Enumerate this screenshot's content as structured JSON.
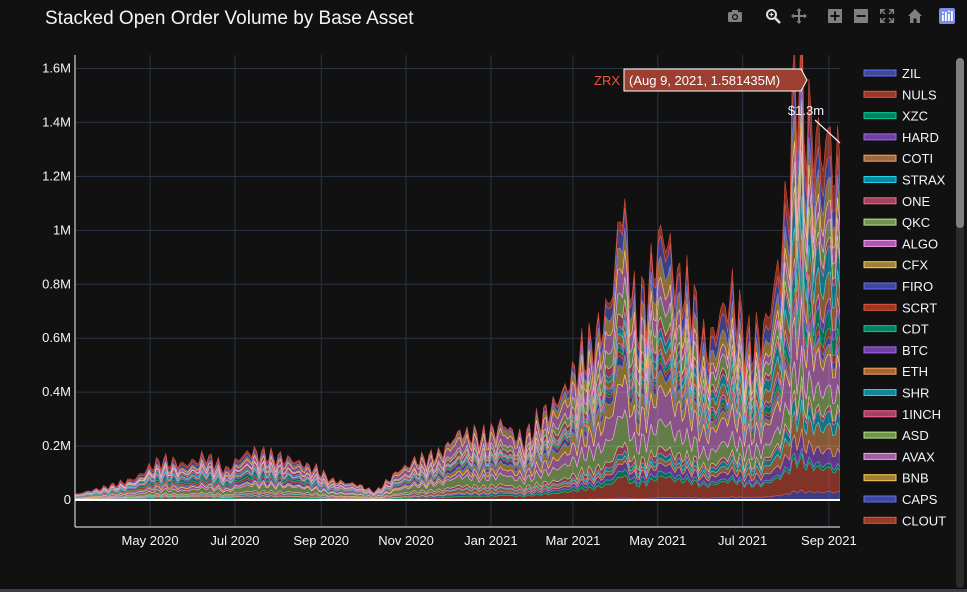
{
  "title": "Stacked Open Order Volume by Base Asset",
  "modebar": [
    {
      "name": "camera-icon",
      "label": "Download plot as a png"
    },
    {
      "name": "zoom-icon",
      "label": "Zoom"
    },
    {
      "name": "pan-icon",
      "label": "Pan"
    },
    {
      "name": "zoom-in-icon",
      "label": "Zoom in"
    },
    {
      "name": "zoom-out-icon",
      "label": "Zoom out"
    },
    {
      "name": "autoscale-icon",
      "label": "Autoscale"
    },
    {
      "name": "home-icon",
      "label": "Reset axes"
    },
    {
      "name": "plotly-logo-icon",
      "label": "Produced with Plotly"
    }
  ],
  "colors": {
    "background": "#111111",
    "gridline": "#283442",
    "text": "#f2f5fa"
  },
  "chart_data": {
    "type": "area",
    "title": "Stacked Open Order Volume by Base Asset",
    "xlabel": "",
    "ylabel": "",
    "x_tick_labels": [
      "May 2020",
      "Jul 2020",
      "Sep 2020",
      "Nov 2020",
      "Jan 2021",
      "Mar 2021",
      "May 2021",
      "Jul 2021",
      "Sep 2021"
    ],
    "y_tick_labels": [
      "0",
      "0.2M",
      "0.4M",
      "0.6M",
      "0.8M",
      "1M",
      "1.2M",
      "1.4M",
      "1.6M"
    ],
    "xlim": [
      "2020-03-08",
      "2021-09-09"
    ],
    "ylim": [
      -100000,
      1650000
    ],
    "grid": true,
    "legend_position": "right",
    "series": [
      {
        "name": "ZIL",
        "color": "#636efa"
      },
      {
        "name": "NULS",
        "color": "#EF553B"
      },
      {
        "name": "XZC",
        "color": "#00cc96"
      },
      {
        "name": "HARD",
        "color": "#ab63fa"
      },
      {
        "name": "COTI",
        "color": "#FFA15A"
      },
      {
        "name": "STRAX",
        "color": "#19d3f3"
      },
      {
        "name": "ONE",
        "color": "#FF6692"
      },
      {
        "name": "QKC",
        "color": "#B6E880"
      },
      {
        "name": "ALGO",
        "color": "#FF97FF"
      },
      {
        "name": "CFX",
        "color": "#FECB52"
      },
      {
        "name": "FIRO",
        "color": "#636efa"
      },
      {
        "name": "SCRT",
        "color": "#EF553B"
      },
      {
        "name": "CDT",
        "color": "#00cc96"
      },
      {
        "name": "BTC",
        "color": "#ab63fa"
      },
      {
        "name": "ETH",
        "color": "#FFA15A"
      },
      {
        "name": "SHR",
        "color": "#19d3f3"
      },
      {
        "name": "1INCH",
        "color": "#FF6692"
      },
      {
        "name": "ASD",
        "color": "#B6E880"
      },
      {
        "name": "AVAX",
        "color": "#FF97FF"
      },
      {
        "name": "BNB",
        "color": "#FECB52"
      },
      {
        "name": "CAPS",
        "color": "#636efa"
      },
      {
        "name": "CLOUT",
        "color": "#EF553B"
      }
    ],
    "total_envelope": {
      "x": [
        "2020-03-08",
        "2020-04-01",
        "2020-04-20",
        "2020-05-10",
        "2020-05-25",
        "2020-06-10",
        "2020-06-25",
        "2020-07-10",
        "2020-07-25",
        "2020-08-10",
        "2020-08-25",
        "2020-09-10",
        "2020-09-25",
        "2020-10-10",
        "2020-10-25",
        "2020-11-10",
        "2020-11-25",
        "2020-12-10",
        "2020-12-25",
        "2021-01-10",
        "2021-01-25",
        "2021-02-10",
        "2021-02-20",
        "2021-03-01",
        "2021-03-10",
        "2021-03-20",
        "2021-03-31",
        "2021-04-05",
        "2021-04-15",
        "2021-04-25",
        "2021-05-05",
        "2021-05-15",
        "2021-05-25",
        "2021-06-05",
        "2021-06-15",
        "2021-06-25",
        "2021-07-05",
        "2021-07-15",
        "2021-07-25",
        "2021-08-01",
        "2021-08-09",
        "2021-08-20",
        "2021-08-30",
        "2021-09-09"
      ],
      "y": [
        20000,
        50000,
        80000,
        150000,
        130000,
        160000,
        110000,
        180000,
        160000,
        150000,
        120000,
        70000,
        60000,
        30000,
        100000,
        150000,
        170000,
        250000,
        230000,
        280000,
        220000,
        320000,
        380000,
        450000,
        550000,
        600000,
        820000,
        1130000,
        650000,
        800000,
        1000000,
        820000,
        750000,
        550000,
        680000,
        750000,
        580000,
        600000,
        800000,
        1050000,
        1580000,
        1350000,
        1300000,
        1250000
      ]
    },
    "hover": {
      "series": "ZRX",
      "label": "(Aug 9, 2021, 1.581435M)",
      "color": "#EF553B"
    },
    "annotation": "$1.3m"
  }
}
